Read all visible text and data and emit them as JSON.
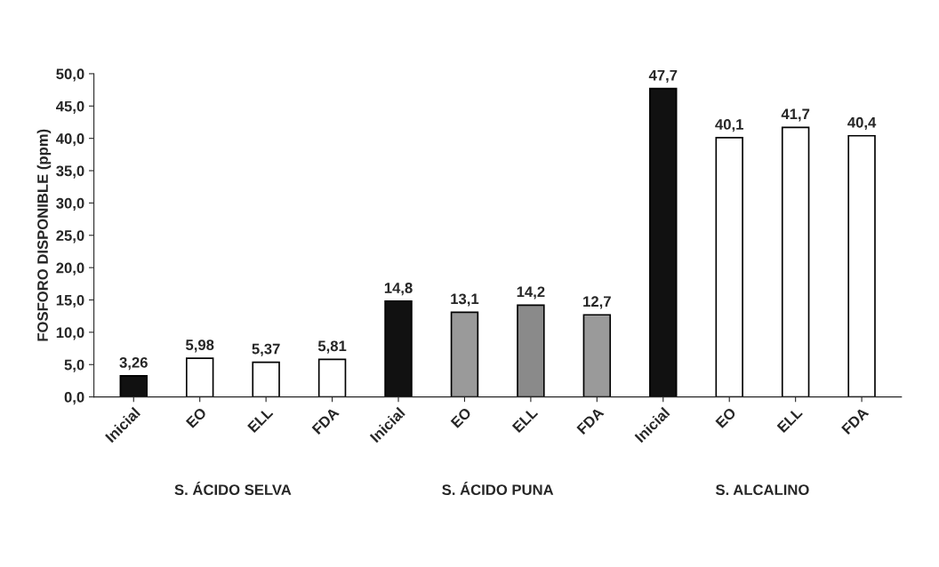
{
  "chart_data": {
    "type": "bar",
    "ylabel": "FOSFORO DISPONIBLE (ppm)",
    "categories": [
      "Inicial",
      "EO",
      "ELL",
      "FDA",
      "Inicial",
      "EO",
      "ELL",
      "FDA",
      "Inicial",
      "EO",
      "ELL",
      "FDA"
    ],
    "values": [
      3.26,
      5.98,
      5.37,
      5.81,
      14.8,
      13.1,
      14.2,
      12.7,
      47.7,
      40.1,
      41.7,
      40.4
    ],
    "value_labels": [
      "3,26",
      "5,98",
      "5,37",
      "5,81",
      "14,8",
      "13,1",
      "14,2",
      "12,7",
      "47,7",
      "40,1",
      "41,7",
      "40,4"
    ],
    "colors": [
      "#111111",
      "#ffffff",
      "#ffffff",
      "#ffffff",
      "#111111",
      "#9a9a9a",
      "#8a8a8a",
      "#9a9a9a",
      "#111111",
      "#ffffff",
      "#ffffff",
      "#ffffff"
    ],
    "ylim": [
      0,
      50
    ],
    "yticks": [
      {
        "value": 0,
        "label": "0,0"
      },
      {
        "value": 5,
        "label": "5,0"
      },
      {
        "value": 10,
        "label": "10,0"
      },
      {
        "value": 15,
        "label": "15,0"
      },
      {
        "value": 20,
        "label": "20,0"
      },
      {
        "value": 25,
        "label": "25,0"
      },
      {
        "value": 30,
        "label": "30,0"
      },
      {
        "value": 35,
        "label": "35,0"
      },
      {
        "value": 40,
        "label": "40,0"
      },
      {
        "value": 45,
        "label": "45,0"
      },
      {
        "value": 50,
        "label": "50,0"
      }
    ],
    "grid": false,
    "legend": false,
    "annotations": [
      "S. ÁCIDO SELVA",
      "S. ÁCIDO PUNA",
      "S. ALCALINO"
    ]
  }
}
